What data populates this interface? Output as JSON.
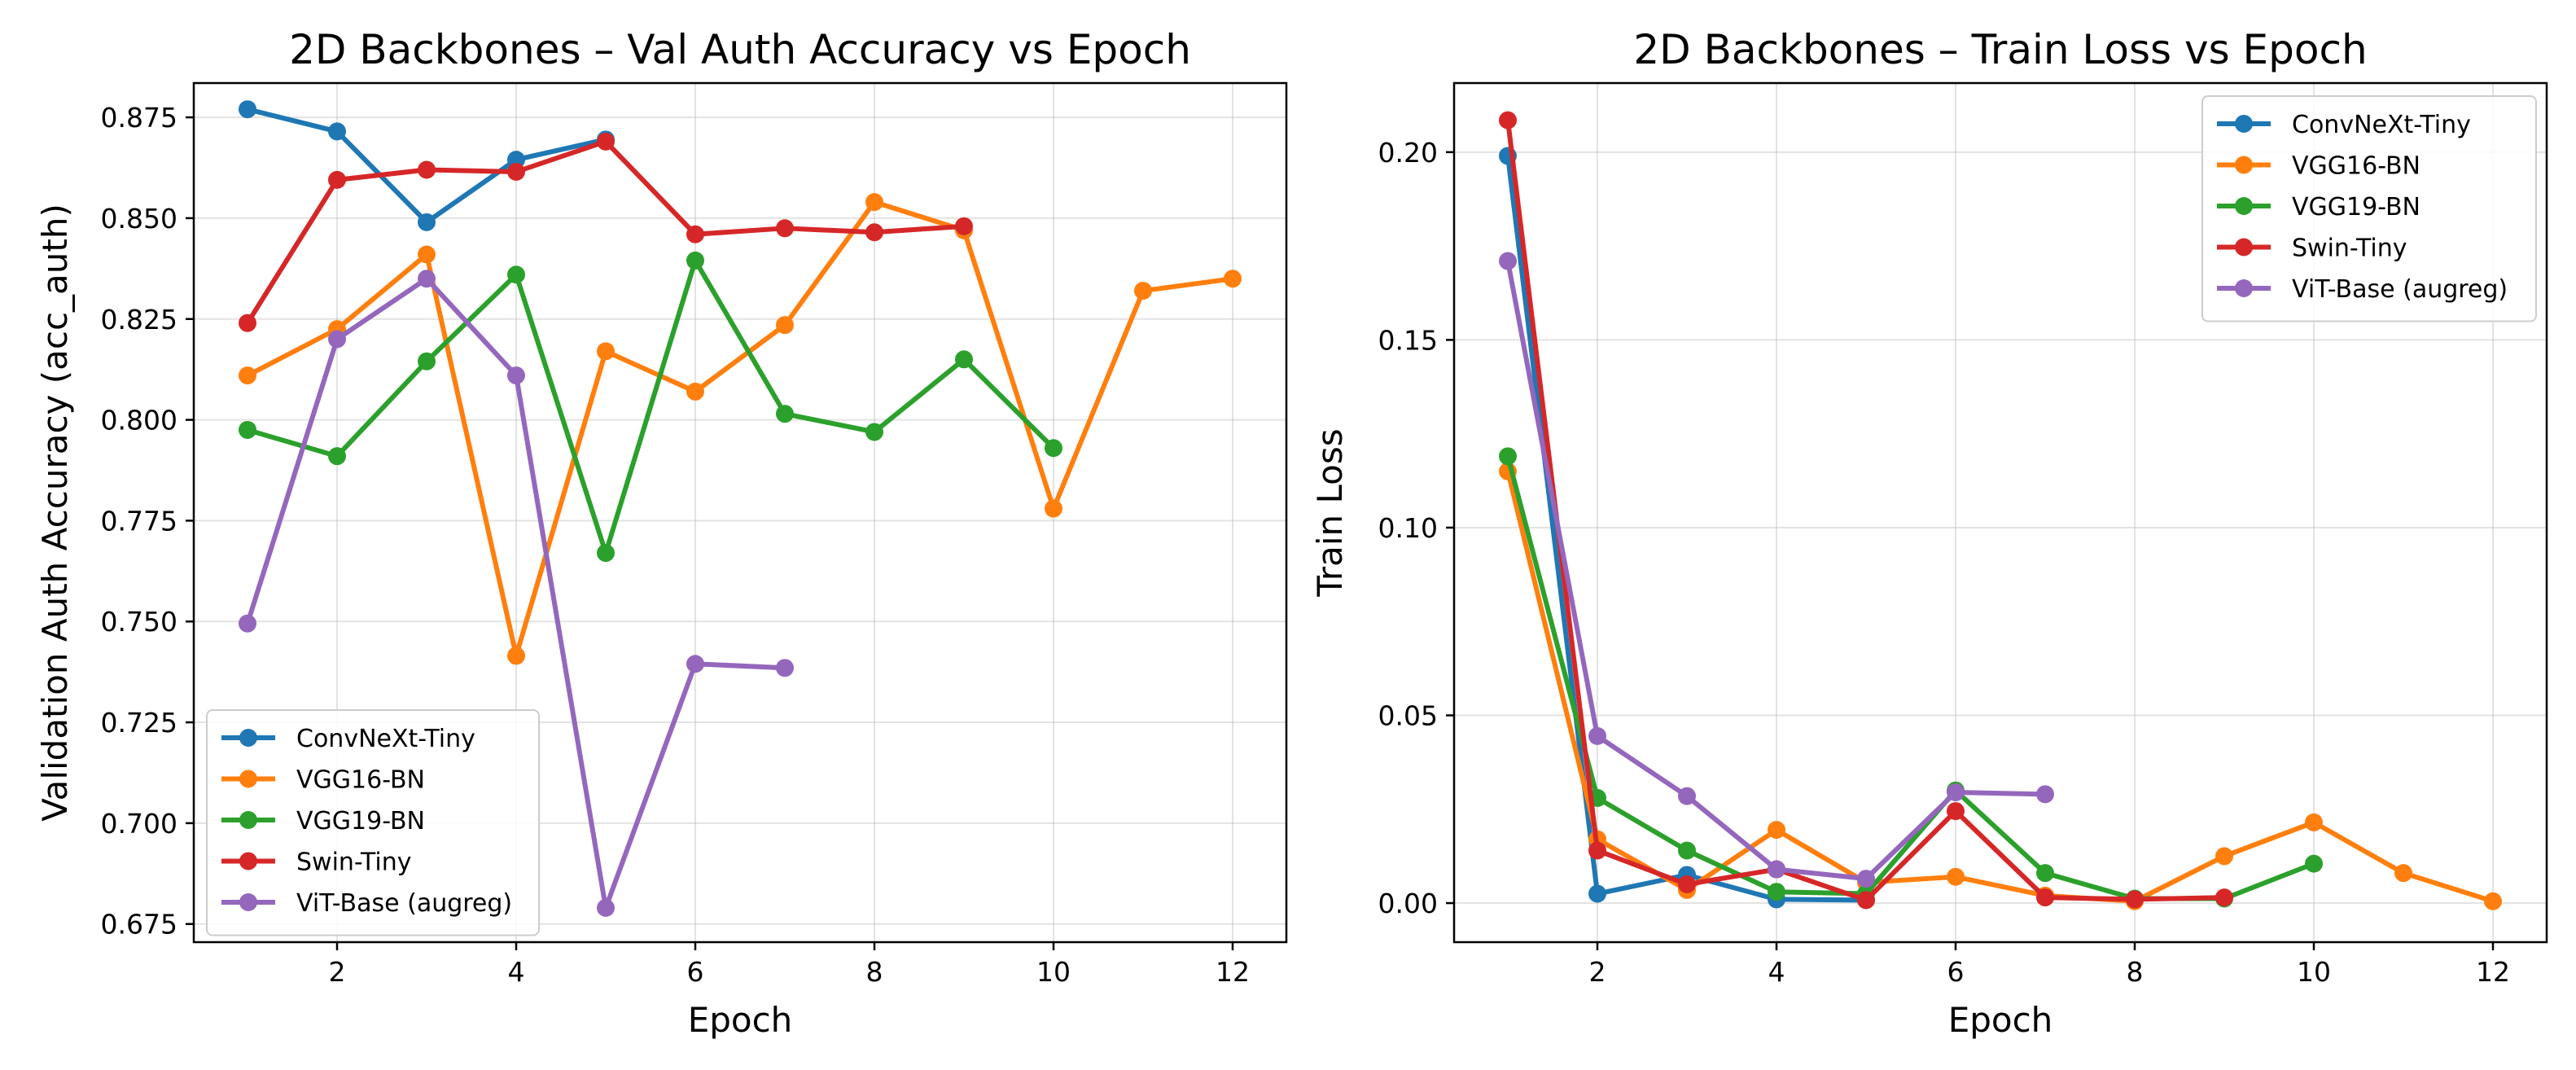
{
  "colors": {
    "ConvNeXt-Tiny": "#1f77b4",
    "VGG16-BN": "#ff7f0e",
    "VGG19-BN": "#2ca02c",
    "Swin-Tiny": "#d62728",
    "ViT-Base (augreg)": "#9467bd"
  },
  "chart_data": [
    {
      "type": "line",
      "title": "2D Backbones – Val Auth Accuracy vs Epoch",
      "xlabel": "Epoch",
      "ylabel": "Validation Auth Accuracy (acc_auth)",
      "xlim": [
        0.4,
        12.6
      ],
      "ylim": [
        0.6705,
        0.8835
      ],
      "xticks": [
        2,
        4,
        6,
        8,
        10,
        12
      ],
      "xtick_labels": [
        "2",
        "4",
        "6",
        "8",
        "10",
        "12"
      ],
      "yticks": [
        0.675,
        0.7,
        0.725,
        0.75,
        0.775,
        0.8,
        0.825,
        0.85,
        0.875
      ],
      "ytick_labels": [
        "0.675",
        "0.700",
        "0.725",
        "0.750",
        "0.775",
        "0.800",
        "0.825",
        "0.850",
        "0.875"
      ],
      "grid": true,
      "legend_position": "lower-left",
      "series": [
        {
          "name": "ConvNeXt-Tiny",
          "x": [
            1,
            2,
            3,
            4,
            5
          ],
          "values": [
            0.877,
            0.8715,
            0.849,
            0.8645,
            0.8695
          ]
        },
        {
          "name": "VGG16-BN",
          "x": [
            1,
            2,
            3,
            4,
            5,
            6,
            7,
            8,
            9,
            10,
            11,
            12
          ],
          "values": [
            0.811,
            0.8225,
            0.841,
            0.7415,
            0.817,
            0.807,
            0.8235,
            0.854,
            0.847,
            0.778,
            0.832,
            0.835
          ]
        },
        {
          "name": "VGG19-BN",
          "x": [
            1,
            2,
            3,
            4,
            5,
            6,
            7,
            8,
            9,
            10
          ],
          "values": [
            0.7975,
            0.791,
            0.8145,
            0.836,
            0.767,
            0.8395,
            0.8015,
            0.797,
            0.815,
            0.793
          ]
        },
        {
          "name": "Swin-Tiny",
          "x": [
            1,
            2,
            3,
            4,
            5,
            6,
            7,
            8,
            9
          ],
          "values": [
            0.824,
            0.8595,
            0.862,
            0.8615,
            0.869,
            0.846,
            0.8475,
            0.8465,
            0.848
          ]
        },
        {
          "name": "ViT-Base (augreg)",
          "x": [
            1,
            2,
            3,
            4,
            5,
            6,
            7
          ],
          "values": [
            0.7495,
            0.82,
            0.835,
            0.811,
            0.679,
            0.7395,
            0.7385
          ]
        }
      ]
    },
    {
      "type": "line",
      "title": "2D Backbones – Train Loss vs Epoch",
      "xlabel": "Epoch",
      "ylabel": "Train Loss",
      "xlim": [
        0.4,
        12.6
      ],
      "ylim": [
        -0.0104,
        0.2184
      ],
      "xticks": [
        2,
        4,
        6,
        8,
        10,
        12
      ],
      "xtick_labels": [
        "2",
        "4",
        "6",
        "8",
        "10",
        "12"
      ],
      "yticks": [
        0.0,
        0.05,
        0.1,
        0.15,
        0.2
      ],
      "ytick_labels": [
        "0.00",
        "0.05",
        "0.10",
        "0.15",
        "0.20"
      ],
      "grid": true,
      "legend_position": "upper-right",
      "series": [
        {
          "name": "ConvNeXt-Tiny",
          "x": [
            1,
            2,
            3,
            4,
            5
          ],
          "values": [
            0.199,
            0.0025,
            0.0075,
            0.001,
            0.0008
          ]
        },
        {
          "name": "VGG16-BN",
          "x": [
            1,
            2,
            3,
            4,
            5,
            6,
            7,
            8,
            9,
            10,
            11,
            12
          ],
          "values": [
            0.115,
            0.017,
            0.0035,
            0.0195,
            0.0055,
            0.007,
            0.002,
            0.0005,
            0.0125,
            0.0215,
            0.008,
            0.0005
          ]
        },
        {
          "name": "VGG19-BN",
          "x": [
            1,
            2,
            3,
            4,
            5,
            6,
            7,
            8,
            9,
            10
          ],
          "values": [
            0.119,
            0.028,
            0.014,
            0.003,
            0.0025,
            0.03,
            0.008,
            0.0012,
            0.0012,
            0.0105
          ]
        },
        {
          "name": "Swin-Tiny",
          "x": [
            1,
            2,
            3,
            4,
            5,
            6,
            7,
            8,
            9
          ],
          "values": [
            0.2085,
            0.014,
            0.005,
            0.009,
            0.0008,
            0.0245,
            0.0015,
            0.001,
            0.0015
          ]
        },
        {
          "name": "ViT-Base (augreg)",
          "x": [
            1,
            2,
            3,
            4,
            5,
            6,
            7
          ],
          "values": [
            0.171,
            0.0445,
            0.0285,
            0.009,
            0.0065,
            0.0295,
            0.029
          ]
        }
      ]
    }
  ]
}
